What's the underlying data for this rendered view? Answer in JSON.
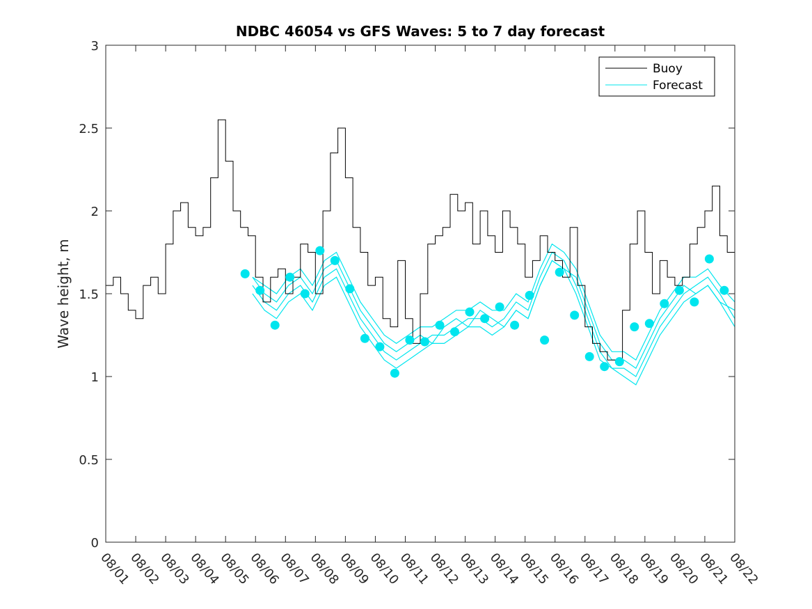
{
  "chart_data": {
    "type": "line",
    "title": "NDBC 46054 vs GFS Waves: 5 to 7 day forecast",
    "xlabel": "",
    "ylabel": "Wave height, m",
    "xlim": [
      0,
      21
    ],
    "ylim": [
      0,
      3
    ],
    "x_tick_labels": [
      "08/01",
      "08/02",
      "08/03",
      "08/04",
      "08/05",
      "08/06",
      "08/07",
      "08/08",
      "08/09",
      "08/10",
      "08/11",
      "08/12",
      "08/13",
      "08/14",
      "08/15",
      "08/16",
      "08/17",
      "08/18",
      "08/19",
      "08/20",
      "08/21",
      "08/22"
    ],
    "y_tick_labels": [
      "0",
      "0.5",
      "1",
      "1.5",
      "2",
      "2.5",
      "3"
    ],
    "y_ticks": [
      0,
      0.5,
      1,
      1.5,
      2,
      2.5,
      3
    ],
    "legend": [
      {
        "label": "Buoy",
        "color": "#000000"
      },
      {
        "label": "Forecast",
        "color": "#00e5ee"
      }
    ],
    "legend_position": "top-right",
    "colors": {
      "buoy": "#000000",
      "forecast": "#00e5ee",
      "marker": "#00e5ee"
    },
    "buoy": {
      "name": "Buoy",
      "x": [
        0,
        0.25,
        0.5,
        0.75,
        1.0,
        1.25,
        1.5,
        1.75,
        2.0,
        2.25,
        2.5,
        2.75,
        3.0,
        3.25,
        3.5,
        3.75,
        4.0,
        4.25,
        4.5,
        4.75,
        5.0,
        5.25,
        5.5,
        5.75,
        6.0,
        6.25,
        6.5,
        6.75,
        7.0,
        7.25,
        7.5,
        7.75,
        8.0,
        8.25,
        8.5,
        8.75,
        9.0,
        9.25,
        9.5,
        9.75,
        10.0,
        10.25,
        10.5,
        10.75,
        11.0,
        11.25,
        11.5,
        11.75,
        12.0,
        12.25,
        12.5,
        12.75,
        13.0,
        13.25,
        13.5,
        13.75,
        14.0,
        14.25,
        14.5,
        14.75,
        15.0,
        15.25,
        15.5,
        15.75,
        16.0,
        16.25,
        16.5,
        16.75,
        17.0,
        17.25,
        17.5,
        17.75,
        18.0,
        18.25,
        18.5,
        18.75,
        19.0,
        19.25,
        19.5,
        19.75,
        20.0,
        20.25,
        20.5,
        20.75,
        21.0
      ],
      "values": [
        1.55,
        1.6,
        1.5,
        1.4,
        1.35,
        1.55,
        1.6,
        1.5,
        1.8,
        2.0,
        2.05,
        1.9,
        1.85,
        1.9,
        2.2,
        2.55,
        2.3,
        2.0,
        1.9,
        1.85,
        1.6,
        1.45,
        1.6,
        1.65,
        1.5,
        1.6,
        1.8,
        1.75,
        1.5,
        2.0,
        2.35,
        2.5,
        2.2,
        1.9,
        1.75,
        1.55,
        1.6,
        1.35,
        1.3,
        1.7,
        1.35,
        1.2,
        1.5,
        1.8,
        1.85,
        1.9,
        2.1,
        2.0,
        2.05,
        1.8,
        2.0,
        1.85,
        1.75,
        2.0,
        1.9,
        1.8,
        1.6,
        1.7,
        1.85,
        1.75,
        1.7,
        1.6,
        1.9,
        1.55,
        1.3,
        1.2,
        1.15,
        1.1,
        1.1,
        1.4,
        1.8,
        2.0,
        1.75,
        1.5,
        1.7,
        1.6,
        1.55,
        1.6,
        1.8,
        1.9,
        2.0,
        2.15,
        1.85,
        1.75,
        1.7
      ]
    },
    "forecast_series": [
      {
        "name": "Forecast run 1",
        "x": [
          4.9,
          5.3,
          5.7,
          6.1,
          6.5,
          6.9,
          7.3,
          7.7,
          8.1,
          8.5,
          8.9,
          9.3,
          9.7,
          10.1,
          10.5,
          10.9,
          11.3,
          11.7,
          12.1,
          12.5,
          12.9,
          13.3,
          13.7,
          14.1,
          14.5,
          14.9,
          15.3,
          15.7,
          16.1,
          16.5,
          16.9,
          17.3,
          17.7,
          18.1,
          18.5,
          18.9,
          19.3,
          19.7,
          20.1,
          20.5,
          21.0
        ],
        "values": [
          1.6,
          1.5,
          1.45,
          1.55,
          1.6,
          1.5,
          1.65,
          1.7,
          1.55,
          1.4,
          1.3,
          1.2,
          1.15,
          1.2,
          1.25,
          1.2,
          1.3,
          1.35,
          1.3,
          1.4,
          1.35,
          1.3,
          1.4,
          1.35,
          1.55,
          1.7,
          1.65,
          1.6,
          1.4,
          1.2,
          1.1,
          1.1,
          1.05,
          1.2,
          1.35,
          1.45,
          1.55,
          1.5,
          1.55,
          1.45,
          1.4
        ]
      },
      {
        "name": "Forecast run 2",
        "x": [
          4.9,
          5.3,
          5.7,
          6.1,
          6.5,
          6.9,
          7.3,
          7.7,
          8.1,
          8.5,
          8.9,
          9.3,
          9.7,
          10.1,
          10.5,
          10.9,
          11.3,
          11.7,
          12.1,
          12.5,
          12.9,
          13.3,
          13.7,
          14.1,
          14.5,
          14.9,
          15.3,
          15.7,
          16.1,
          16.5,
          16.9,
          17.3,
          17.7,
          18.1,
          18.5,
          18.9,
          19.3,
          19.7,
          20.1,
          20.5,
          21.0
        ],
        "values": [
          1.55,
          1.45,
          1.4,
          1.5,
          1.55,
          1.45,
          1.6,
          1.65,
          1.5,
          1.35,
          1.25,
          1.15,
          1.1,
          1.15,
          1.2,
          1.25,
          1.25,
          1.3,
          1.35,
          1.35,
          1.3,
          1.35,
          1.45,
          1.4,
          1.6,
          1.75,
          1.7,
          1.55,
          1.35,
          1.15,
          1.05,
          1.05,
          1.0,
          1.15,
          1.3,
          1.4,
          1.5,
          1.55,
          1.6,
          1.5,
          1.35
        ]
      },
      {
        "name": "Forecast run 3",
        "x": [
          4.9,
          5.3,
          5.7,
          6.1,
          6.5,
          6.9,
          7.3,
          7.7,
          8.1,
          8.5,
          8.9,
          9.3,
          9.7,
          10.1,
          10.5,
          10.9,
          11.3,
          11.7,
          12.1,
          12.5,
          12.9,
          13.3,
          13.7,
          14.1,
          14.5,
          14.9,
          15.3,
          15.7,
          16.1,
          16.5,
          16.9,
          17.3,
          17.7,
          18.1,
          18.5,
          18.9,
          19.3,
          19.7,
          20.1,
          20.5,
          21.0
        ],
        "values": [
          1.5,
          1.4,
          1.35,
          1.45,
          1.5,
          1.4,
          1.55,
          1.6,
          1.45,
          1.3,
          1.2,
          1.1,
          1.05,
          1.1,
          1.15,
          1.2,
          1.2,
          1.25,
          1.3,
          1.3,
          1.25,
          1.3,
          1.4,
          1.35,
          1.55,
          1.7,
          1.65,
          1.5,
          1.3,
          1.1,
          1.05,
          1.0,
          0.95,
          1.1,
          1.25,
          1.35,
          1.45,
          1.5,
          1.55,
          1.45,
          1.3
        ]
      },
      {
        "name": "Forecast run 4",
        "x": [
          4.9,
          5.3,
          5.7,
          6.1,
          6.5,
          6.9,
          7.3,
          7.7,
          8.1,
          8.5,
          8.9,
          9.3,
          9.7,
          10.1,
          10.5,
          10.9,
          11.3,
          11.7,
          12.1,
          12.5,
          12.9,
          13.3,
          13.7,
          14.1,
          14.5,
          14.9,
          15.3,
          15.7,
          16.1,
          16.5,
          16.9,
          17.3,
          17.7,
          18.1,
          18.5,
          18.9,
          19.3,
          19.7,
          20.1,
          20.5,
          21.0
        ],
        "values": [
          1.6,
          1.55,
          1.5,
          1.6,
          1.65,
          1.55,
          1.7,
          1.75,
          1.6,
          1.45,
          1.35,
          1.25,
          1.2,
          1.25,
          1.3,
          1.3,
          1.35,
          1.4,
          1.4,
          1.45,
          1.4,
          1.4,
          1.5,
          1.45,
          1.65,
          1.8,
          1.75,
          1.65,
          1.45,
          1.25,
          1.15,
          1.15,
          1.1,
          1.25,
          1.4,
          1.5,
          1.6,
          1.6,
          1.65,
          1.55,
          1.45
        ]
      }
    ],
    "forecast_markers": {
      "x": [
        4.65,
        5.15,
        5.65,
        6.15,
        6.65,
        7.15,
        7.65,
        8.15,
        8.65,
        9.15,
        9.65,
        10.15,
        10.65,
        11.15,
        11.65,
        12.15,
        12.65,
        13.15,
        13.65,
        14.15,
        14.65,
        15.15,
        15.65,
        16.15,
        16.65,
        17.15,
        17.65,
        18.15,
        18.65,
        19.15,
        19.65,
        20.15,
        20.65
      ],
      "values": [
        1.62,
        1.52,
        1.31,
        1.6,
        1.5,
        1.76,
        1.7,
        1.53,
        1.23,
        1.18,
        1.02,
        1.22,
        1.21,
        1.31,
        1.27,
        1.39,
        1.35,
        1.42,
        1.31,
        1.49,
        1.22,
        1.63,
        1.37,
        1.12,
        1.06,
        1.09,
        1.3,
        1.32,
        1.44,
        1.52,
        1.45,
        1.71,
        1.52
      ]
    }
  }
}
